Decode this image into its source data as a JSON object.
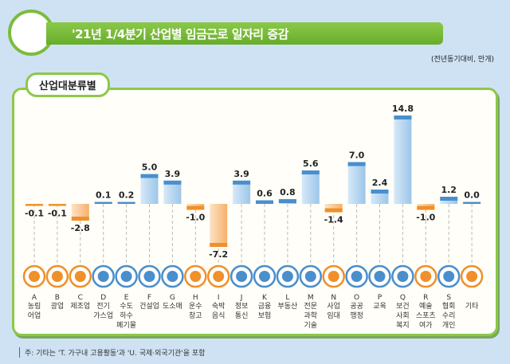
{
  "header": {
    "title": "'21년 1/4분기 산업별 임금근로 일자리 증감",
    "unit": "(전년동기대비, 만개)"
  },
  "panel": {
    "tab_label": "산업대분류별"
  },
  "note": "주: 기타는 'T. 가구내 고용활동'과 'U. 국제·외국기관'을 포함",
  "colors": {
    "positive": "#3a7fc0",
    "negative": "#f0902a",
    "accent": "#7cbc3c"
  },
  "chart_data": {
    "type": "bar",
    "categories": [
      {
        "code": "A",
        "name": "농림\n어업",
        "icon": "wheat-icon"
      },
      {
        "code": "B",
        "name": "광업",
        "icon": "helmet-icon"
      },
      {
        "code": "C",
        "name": "제조업",
        "icon": "gears-icon"
      },
      {
        "code": "D",
        "name": "전기\n가스업",
        "icon": "lightning-icon"
      },
      {
        "code": "E",
        "name": "수도\n하수\n폐기물",
        "icon": "faucet-icon"
      },
      {
        "code": "F",
        "name": "건설업",
        "icon": "excavator-icon"
      },
      {
        "code": "G",
        "name": "도소매",
        "icon": "basket-icon"
      },
      {
        "code": "H",
        "name": "운수\n창고",
        "icon": "truck-icon"
      },
      {
        "code": "I",
        "name": "숙박\n음식",
        "icon": "plate-icon"
      },
      {
        "code": "J",
        "name": "정보\n통신",
        "icon": "phone-icon"
      },
      {
        "code": "K",
        "name": "금융\n보험",
        "icon": "atm-icon"
      },
      {
        "code": "L",
        "name": "부동산",
        "icon": "house-icon"
      },
      {
        "code": "M",
        "name": "전문\n과학\n기술",
        "icon": "flask-icon"
      },
      {
        "code": "N",
        "name": "사업\n임대",
        "icon": "people-icon"
      },
      {
        "code": "O",
        "name": "공공\n행정",
        "icon": "scroll-icon"
      },
      {
        "code": "P",
        "name": "교육",
        "icon": "graduation-cap-icon"
      },
      {
        "code": "Q",
        "name": "보건\n사회\n복지",
        "icon": "medical-kit-icon"
      },
      {
        "code": "R",
        "name": "예술\n스포츠\n여가",
        "icon": "palette-icon"
      },
      {
        "code": "S",
        "name": "협회\n수리\n개인",
        "icon": "group-icon"
      },
      {
        "code": "",
        "name": "기타",
        "icon": "document-icon"
      }
    ],
    "values": [
      -0.1,
      -0.1,
      -2.8,
      0.1,
      0.2,
      5.0,
      3.9,
      -1.0,
      -7.2,
      3.9,
      0.6,
      0.8,
      5.6,
      -1.4,
      7.0,
      2.4,
      14.8,
      -1.0,
      1.2,
      0.0
    ],
    "value_labels": [
      "-0.1",
      "-0.1",
      "-2.8",
      "0.1",
      "0.2",
      "5.0",
      "3.9",
      "-1.0",
      "-7.2",
      "3.9",
      "0.6",
      "0.8",
      "5.6",
      "-1.4",
      "7.0",
      "2.4",
      "14.8",
      "-1.0",
      "1.2",
      "0.0"
    ],
    "icon_colors": [
      "orange",
      "orange",
      "orange",
      "blue",
      "blue",
      "blue",
      "blue",
      "orange",
      "orange",
      "blue",
      "blue",
      "blue",
      "blue",
      "orange",
      "blue",
      "blue",
      "blue",
      "orange",
      "blue",
      "orange"
    ]
  }
}
